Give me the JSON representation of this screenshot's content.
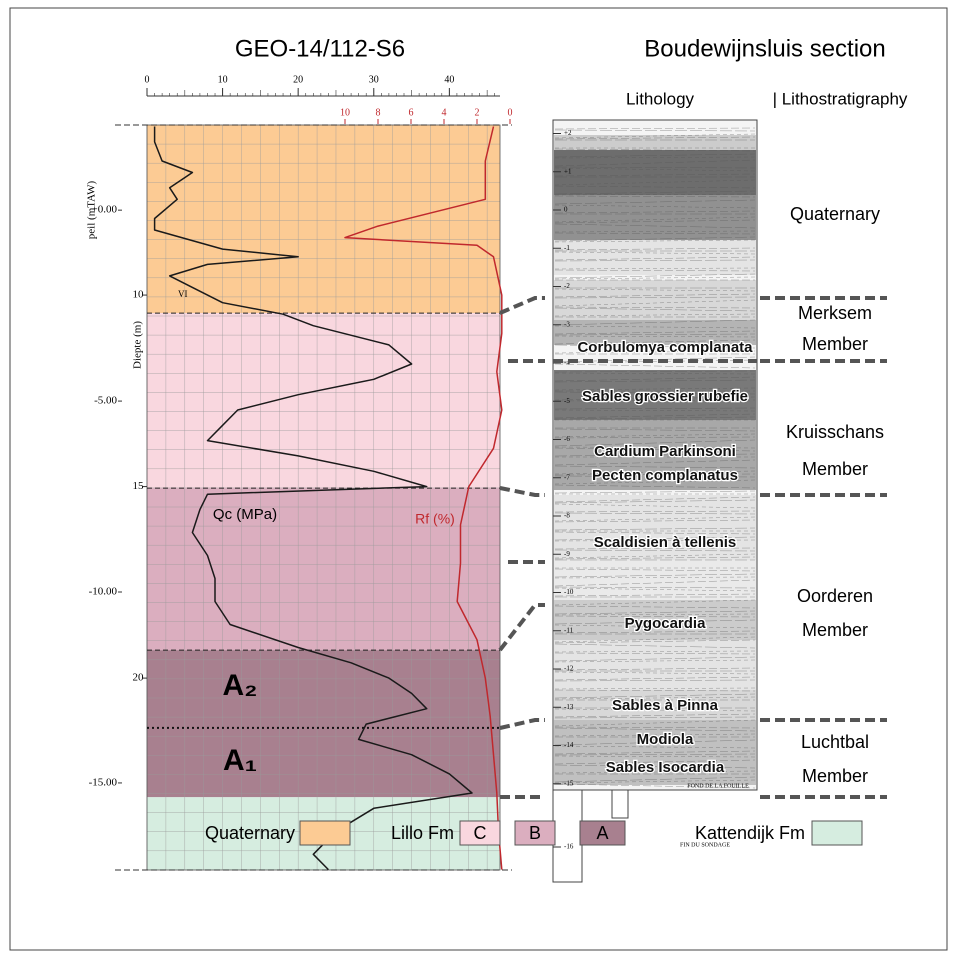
{
  "chart_data": {
    "type": "line",
    "title": "GEO-14/112-S6",
    "depth_label": "Diepte (m)",
    "peil_label": "peil (mTAW)",
    "qc_lim": [
      0,
      46.7
    ],
    "qc_ticks": [
      0,
      10,
      20,
      30,
      40
    ],
    "rf_lim": [
      10,
      0
    ],
    "rf_ticks": [
      10,
      8,
      6,
      4,
      2,
      0
    ],
    "depth_lim": [
      5.56,
      25.01
    ],
    "depth_ticks": [
      10,
      15,
      20
    ],
    "peil_lim": [
      2.23,
      -17.28
    ],
    "peil_ticks": [
      {
        "value": 0,
        "label": "+0.00"
      },
      {
        "value": -5,
        "label": "-5.00"
      },
      {
        "value": -10,
        "label": "-10.00"
      },
      {
        "value": -15,
        "label": "-15.00"
      }
    ],
    "series": [
      {
        "name": "Qc (MPa)",
        "color": "#1a1a1a",
        "depth": [
          5.6,
          6.0,
          6.5,
          6.8,
          7.2,
          7.5,
          8.0,
          8.3,
          8.8,
          9.0,
          9.2,
          9.5,
          9.8,
          10.2,
          10.5,
          10.8,
          11.3,
          11.8,
          12.2,
          12.6,
          13.0,
          13.4,
          13.8,
          14.2,
          14.6,
          15.0,
          15.2,
          15.6,
          16.2,
          16.8,
          17.4,
          18.0,
          18.6,
          19.2,
          19.6,
          20.0,
          20.4,
          20.8,
          21.2,
          21.6,
          22.0,
          22.5,
          23.0,
          23.4,
          24.0,
          24.6,
          25.0
        ],
        "values": [
          1,
          1,
          2,
          6,
          3,
          4,
          1,
          1,
          10,
          20,
          8,
          3,
          6,
          10,
          18,
          22,
          32,
          35,
          30,
          20,
          12,
          10,
          8,
          20,
          30,
          37,
          8,
          7,
          6,
          8,
          9,
          9,
          11,
          20,
          27,
          32,
          35,
          37,
          29,
          28,
          35,
          40,
          43,
          30,
          25,
          22,
          24
        ]
      },
      {
        "name": "Rf (%)",
        "color": "#c0282d",
        "depth": [
          5.6,
          6.5,
          7.5,
          8.2,
          8.5,
          8.7,
          9.0,
          10.0,
          11.0,
          12.0,
          13.0,
          14.0,
          15.0,
          16.0,
          17.0,
          18.0,
          19.0,
          20.0,
          21.0,
          22.0,
          23.0,
          24.0,
          25.0
        ],
        "values": [
          1,
          1.5,
          1.5,
          8,
          10,
          2,
          1,
          0.5,
          0.5,
          0.8,
          0.5,
          1,
          2.5,
          3,
          3,
          3.2,
          2,
          1.5,
          1.2,
          1,
          0.8,
          0.7,
          0.5
        ]
      }
    ],
    "zone_boundaries": [
      5.56,
      10.47,
      15.04,
      19.27,
      23.11,
      25.01
    ],
    "subunit_boundary": 21.3,
    "subunit_labels": [
      "A₂",
      "A₁"
    ],
    "marker": "VI"
  },
  "section": {
    "title": "Boudewijnsluis section",
    "lithology_label": "Lithology",
    "lithostratigraphy_label": "| Lithostratigraphy",
    "scale_ticks": [
      {
        "value": 2,
        "label": "+2"
      },
      {
        "value": 1,
        "label": "+1"
      },
      0,
      -1,
      -2,
      -3,
      -4,
      -5,
      -6,
      -7,
      -8,
      -9,
      -10,
      -11,
      -12,
      -13,
      -14,
      -15,
      -16
    ],
    "layers": [
      "Corbulomya complanata",
      "Sables grossier rubefie",
      "Cardium Parkinsoni",
      "Pecten complanatus",
      "Scaldisien à tellenis",
      "Pygocardia",
      "Sables à Pinna",
      "Modiola",
      "Sables Isocardia"
    ],
    "units": [
      [
        "Quaternary"
      ],
      [
        "Merksem",
        "Member"
      ],
      [
        "Kruisschans",
        "Member"
      ],
      [
        "Oorderen",
        "Member"
      ],
      [
        "Luchtbal",
        "Member"
      ]
    ],
    "notes": [
      "FOND DE LA FOUILLE",
      "FIN DU SONDAGE"
    ]
  },
  "legend": {
    "group_label": "Lillo Fm",
    "items": [
      {
        "label": "Quaternary",
        "color": "#fccb94"
      },
      {
        "label": "C",
        "color": "#f9d7df"
      },
      {
        "label": "B",
        "color": "#dbaebf"
      },
      {
        "label": "A",
        "color": "#a8808f"
      },
      {
        "label": "Kattendijk Fm",
        "color": "#d6ede0"
      }
    ]
  }
}
